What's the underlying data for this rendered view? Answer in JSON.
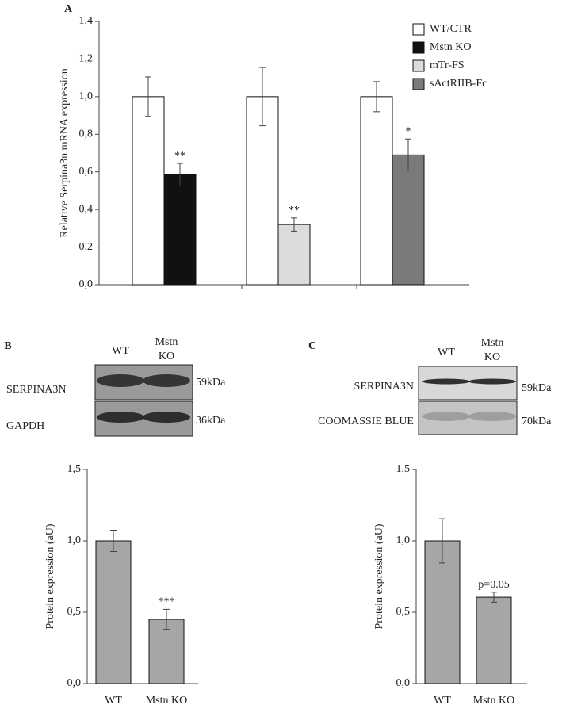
{
  "chart_data": [
    {
      "type": "bar",
      "panel": "A",
      "ylabel": "Relative Serpina3n mRNA expression",
      "categories": [
        null,
        null,
        null
      ],
      "series": [
        {
          "name": "WT/CTR",
          "color": "#ffffff",
          "values": [
            1.0,
            1.0,
            1.0
          ],
          "errors": [
            0.105,
            0.155,
            0.08
          ]
        },
        {
          "name": "Mstn KO",
          "color": "#111111",
          "values": [
            0.585,
            null,
            null
          ],
          "errors": [
            0.06,
            null,
            null
          ],
          "annotations": [
            "**",
            null,
            null
          ]
        },
        {
          "name": "mTr-FS",
          "color": "#dcdcdc",
          "values": [
            null,
            0.32,
            null
          ],
          "errors": [
            null,
            0.035,
            null
          ],
          "annotations": [
            null,
            "**",
            null
          ]
        },
        {
          "name": "sActRIIB-Fc",
          "color": "#7a7a7a",
          "values": [
            null,
            null,
            0.69
          ],
          "errors": [
            null,
            null,
            0.085
          ],
          "annotations": [
            null,
            null,
            "*"
          ]
        }
      ],
      "ylim": [
        0,
        1.4
      ],
      "yticks": [
        {
          "value": 0,
          "label": "0,0"
        },
        {
          "value": 0.2,
          "label": "0,2"
        },
        {
          "value": 0.4,
          "label": "0,4"
        },
        {
          "value": 0.6,
          "label": "0,6"
        },
        {
          "value": 0.8,
          "label": "0,8"
        },
        {
          "value": 1.0,
          "label": "1,0"
        },
        {
          "value": 1.2,
          "label": "1,2"
        },
        {
          "value": 1.4,
          "label": "1,4"
        }
      ],
      "legend": "upper right"
    },
    {
      "type": "bar",
      "panel": "B",
      "ylabel": "Protein expression (aU)",
      "categories": [
        "WT",
        "Mstn KO"
      ],
      "values": [
        1.0,
        0.45
      ],
      "errors": [
        0.075,
        0.07
      ],
      "annotations": [
        null,
        "***"
      ],
      "color": "#a6a6a6",
      "ylim": [
        0,
        1.5
      ],
      "yticks": [
        {
          "value": 0,
          "label": "0,0"
        },
        {
          "value": 0.5,
          "label": "0,5"
        },
        {
          "value": 1.0,
          "label": "1,0"
        },
        {
          "value": 1.5,
          "label": "1,5"
        }
      ]
    },
    {
      "type": "bar",
      "panel": "C",
      "ylabel": "Protein expression (aU)",
      "categories": [
        "WT",
        "Mstn KO"
      ],
      "values": [
        1.0,
        0.605
      ],
      "errors": [
        0.155,
        0.035
      ],
      "annotations": [
        null,
        "p=0.05"
      ],
      "color": "#a6a6a6",
      "ylim": [
        0,
        1.5
      ],
      "yticks": [
        {
          "value": 0,
          "label": "0,0"
        },
        {
          "value": 0.5,
          "label": "0,5"
        },
        {
          "value": 1.0,
          "label": "1,0"
        },
        {
          "value": 1.5,
          "label": "1,5"
        }
      ]
    }
  ],
  "blots": [
    {
      "columns": [
        [
          "WT"
        ],
        [
          "Mstn",
          "KO"
        ]
      ],
      "rows": [
        "SERPINA3N",
        "GAPDH"
      ],
      "sizes": [
        "59kDa",
        "36kDa"
      ]
    },
    {
      "columns": [
        [
          "WT"
        ],
        [
          "Mstn",
          "KO"
        ]
      ],
      "rows": [
        "SERPINA3N",
        "COOMASSIE BLUE"
      ],
      "sizes": [
        "59kDa",
        "70kDa"
      ]
    }
  ]
}
